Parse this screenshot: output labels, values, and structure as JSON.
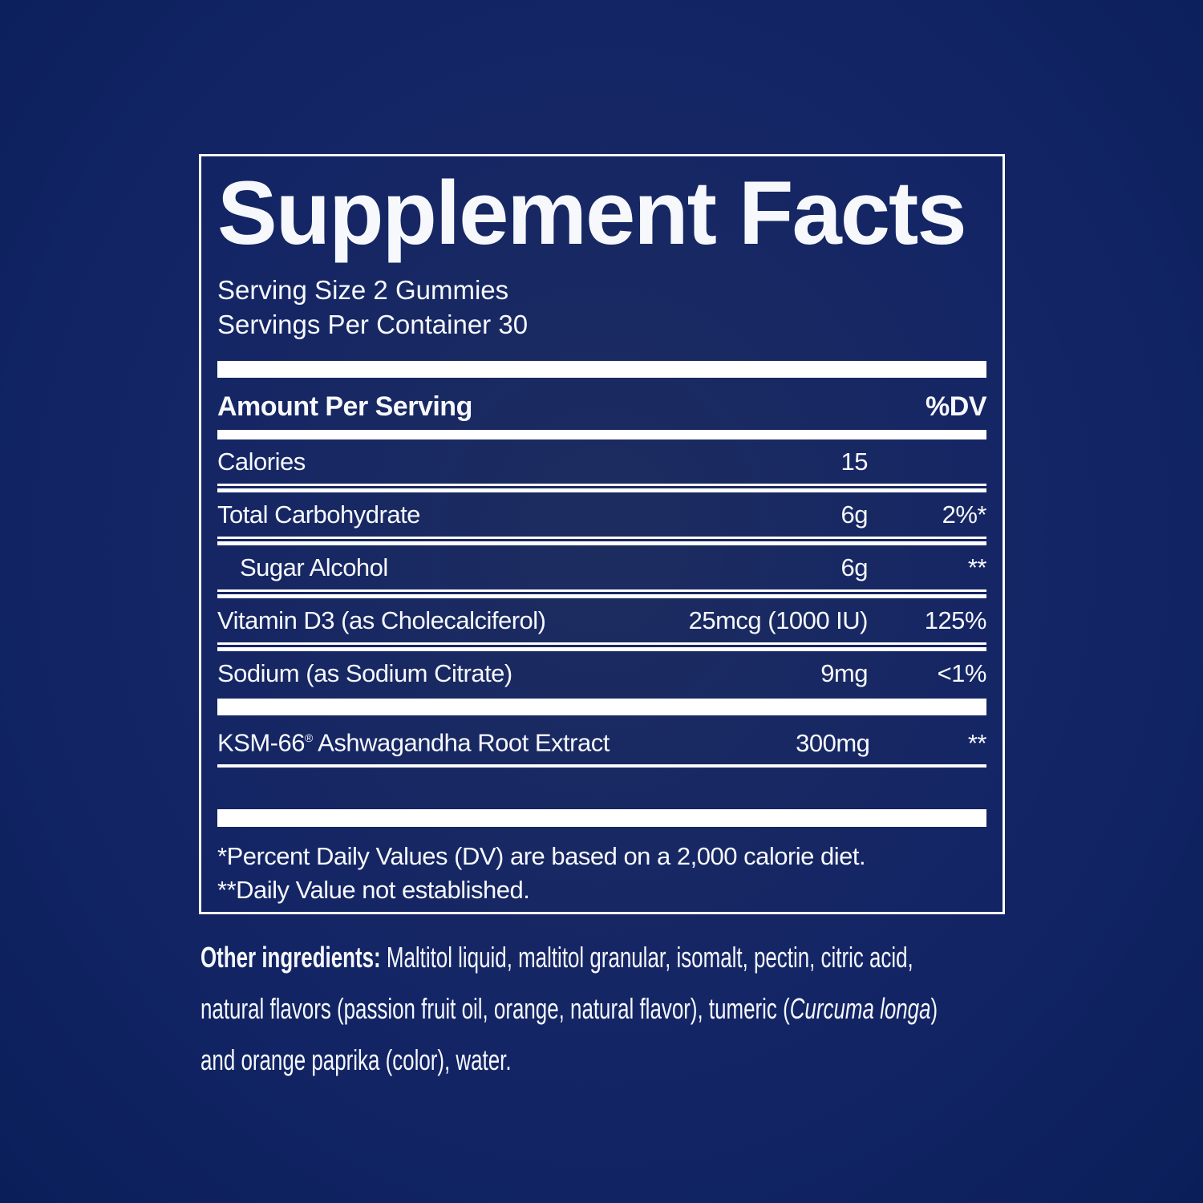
{
  "panel": {
    "title": "Supplement Facts",
    "serving_size": "Serving Size 2 Gummies",
    "servings_per_container": "Servings Per Container 30",
    "header": {
      "amount_label": "Amount Per Serving",
      "dv_label": "%DV"
    },
    "rows": [
      {
        "name": "Calories",
        "amount": "15",
        "dv": ""
      },
      {
        "name": "Total Carbohydrate",
        "amount": "6g",
        "dv": "2%*"
      },
      {
        "name": "Sugar Alcohol",
        "amount": "6g",
        "dv": "**"
      },
      {
        "name": "Vitamin D3 (as Cholecalciferol)",
        "amount": "25mcg (1000 IU)",
        "dv": "125%"
      },
      {
        "name": "Sodium (as Sodium Citrate)",
        "amount": "9mg",
        "dv": "<1%"
      }
    ],
    "extract_row": {
      "brand": "KSM-66",
      "reg_mark": "®",
      "name_rest": " Ashwagandha Root Extract",
      "amount": "300mg",
      "dv": "**"
    },
    "footnotes": [
      "*Percent Daily Values (DV) are based on a 2,000 calorie diet.",
      "**Daily Value not established."
    ]
  },
  "other_ingredients": {
    "lines": [
      {
        "bold": "Other ingredients:",
        "text": " Maltitol liquid, maltitol granular, isomalt, pectin, citric acid,"
      },
      {
        "text": "natural flavors (passion fruit oil, orange, natural flavor), tumeric (",
        "italic": "Curcuma longa",
        "text_after": ")"
      },
      {
        "text": "and orange paprika (color), water."
      }
    ]
  },
  "colors": {
    "background_navy": "#0c2161",
    "panel_navy": "#1b2a5c",
    "rule_white": "#ffffff",
    "text": "#f6f8fb"
  }
}
